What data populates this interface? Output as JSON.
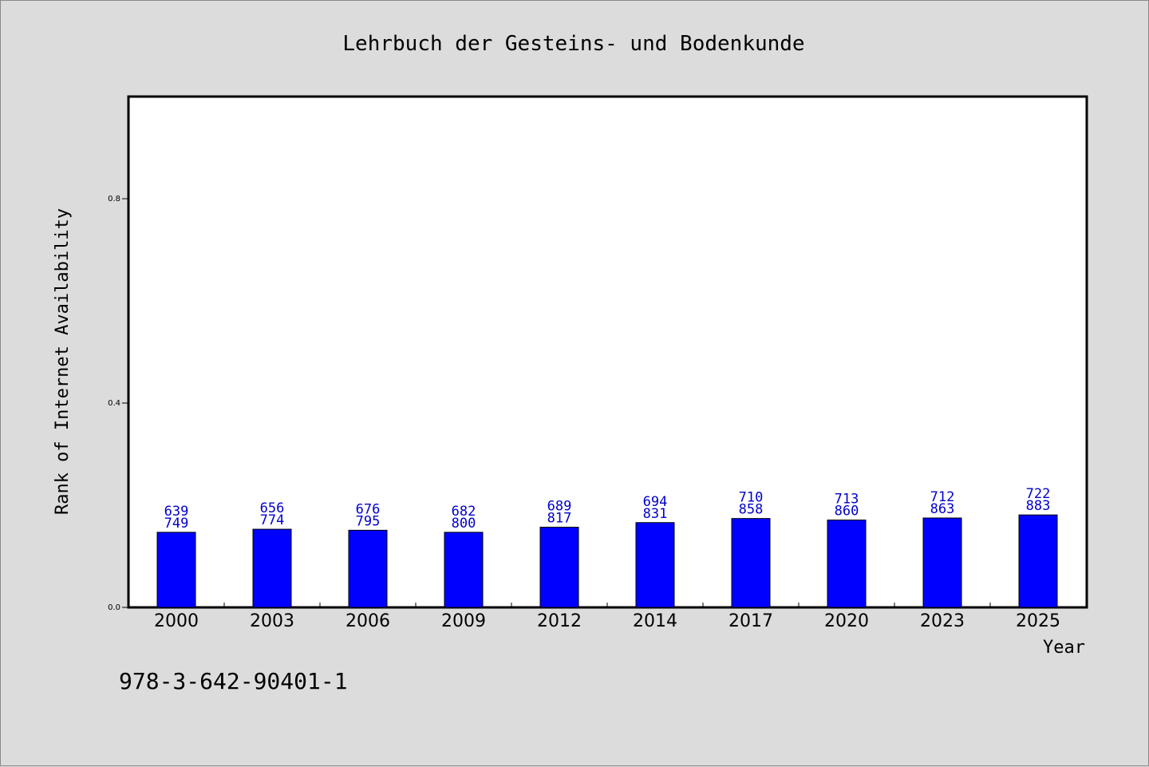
{
  "chart_data": {
    "type": "bar",
    "title": "Lehrbuch der Gesteins- und Bodenkunde",
    "xlabel": "Year",
    "ylabel": "Rank of Internet Availability",
    "categories": [
      "2000",
      "2003",
      "2006",
      "2009",
      "2012",
      "2014",
      "2017",
      "2020",
      "2023",
      "2025"
    ],
    "values": [
      0.147,
      0.153,
      0.151,
      0.147,
      0.157,
      0.166,
      0.174,
      0.171,
      0.175,
      0.181
    ],
    "labels_top": [
      "639",
      "656",
      "676",
      "682",
      "689",
      "694",
      "710",
      "713",
      "712",
      "722"
    ],
    "labels_bottom": [
      "749",
      "774",
      "795",
      "800",
      "817",
      "831",
      "858",
      "860",
      "863",
      "883"
    ],
    "yticks": [
      0.0,
      0.4,
      0.8
    ],
    "ytick_labels": [
      "0.0",
      "0.4",
      "0.8"
    ],
    "ylim": [
      0,
      1.0
    ],
    "grid": false,
    "colors": {
      "bar": "#0000ff",
      "label": "#0000cc",
      "background": "#dcdcdc",
      "plot": "#ffffff"
    }
  },
  "footer": {
    "isbn": "978-3-642-90401-1"
  }
}
